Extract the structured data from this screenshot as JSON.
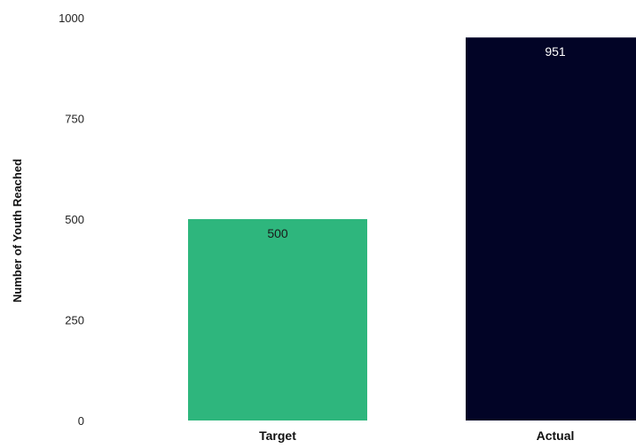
{
  "chart_data": {
    "type": "bar",
    "title": "",
    "xlabel": "",
    "ylabel": "Number of Youth Reached",
    "categories": [
      "Target",
      "Actual"
    ],
    "values": [
      500,
      951
    ],
    "data_labels": [
      "500",
      "951"
    ],
    "bar_colors": [
      "#2eb67d",
      "#020426"
    ],
    "data_label_colors": [
      "#1a1a1a",
      "#ffffff"
    ],
    "ylim": [
      0,
      1000
    ],
    "yticks": [
      0,
      250,
      500,
      750,
      1000
    ],
    "ytick_labels": [
      "0",
      "250",
      "500",
      "750",
      "1000"
    ],
    "grid": false,
    "legend": "none"
  }
}
